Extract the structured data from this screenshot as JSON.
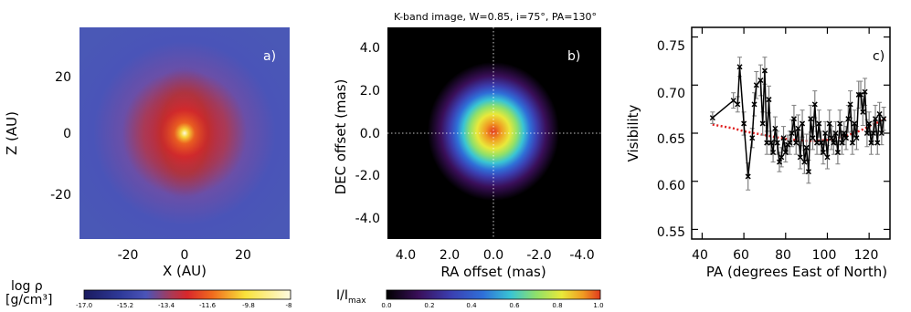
{
  "panel_a": {
    "tag": "a)",
    "x_ticks": [
      "-20",
      "0",
      "20"
    ],
    "y_ticks": [
      "20",
      "0",
      "-20"
    ],
    "xlabel": "X (AU)",
    "ylabel": "Z (AU)",
    "colorbar_label_line1": "log ρ",
    "colorbar_label_line2": "[g/cm³]",
    "colorbar_ticks": [
      "-17.0",
      "-15.2",
      "-13.4",
      "-11.6",
      "-9.8",
      "-8"
    ]
  },
  "panel_b": {
    "tag": "b)",
    "title": "K-band image, W=0.85, i=75°, PA=130°",
    "x_ticks": [
      "4.0",
      "2.0",
      "0.0",
      "-2.0",
      "-4.0"
    ],
    "y_ticks": [
      "4.0",
      "2.0",
      "0.0",
      "-2.0",
      "-4.0"
    ],
    "xlabel": "RA offset (mas)",
    "ylabel": "DEC offset (mas)",
    "colorbar_label": "I/I",
    "colorbar_label_sub": "max",
    "colorbar_ticks": [
      "0.0",
      "0.2",
      "0.4",
      "0.6",
      "0.8",
      "1.0"
    ]
  },
  "panel_c": {
    "tag": "c)",
    "x_ticks": [
      "40",
      "60",
      "80",
      "100",
      "120"
    ],
    "y_ticks": [
      "0.75",
      "0.70",
      "0.65",
      "0.60",
      "0.55"
    ],
    "xlabel": "PA (degrees East of North)",
    "ylabel": "Visibility"
  },
  "colors": {
    "density_map": [
      "#1a1a5e",
      "#2f3a9a",
      "#4a54b8",
      "#6a4fa8",
      "#a83a58",
      "#d9272b",
      "#f06a1e",
      "#f9e23a",
      "#fffbe0"
    ],
    "intensity_map": [
      "#000000",
      "#3a0f5a",
      "#3b3eb0",
      "#2f6fd8",
      "#39c4d4",
      "#8fe06a",
      "#e9e93a",
      "#f09a22",
      "#e23a1e"
    ],
    "model_line": "#e02020",
    "data_line": "#000000",
    "error_bar": "#808080"
  },
  "chart_data": [
    {
      "type": "heatmap",
      "panel": "a",
      "quantity": "log density",
      "xlim": [
        -35,
        35
      ],
      "ylim": [
        -35,
        35
      ],
      "zlim": [
        -17.0,
        -8.0
      ]
    },
    {
      "type": "heatmap",
      "panel": "b",
      "quantity": "normalized K-band intensity",
      "xlim": [
        5.0,
        -5.0
      ],
      "ylim": [
        -5.0,
        5.0
      ],
      "zlim": [
        0.0,
        1.0
      ]
    },
    {
      "type": "line",
      "panel": "c",
      "xlim": [
        35,
        130
      ],
      "ylim": [
        0.54,
        0.76
      ],
      "series": [
        {
          "x": [
            45,
            55,
            57,
            58,
            60,
            62,
            64,
            65,
            66,
            68,
            69,
            70,
            71,
            72,
            73,
            74,
            75,
            76,
            77,
            78,
            79,
            80,
            81,
            82,
            83,
            84,
            85,
            86,
            87,
            88,
            89,
            90,
            91,
            92,
            93,
            94,
            95,
            96,
            97,
            98,
            99,
            100,
            101,
            102,
            103,
            104,
            105,
            106,
            107,
            108,
            109,
            110,
            111,
            112,
            113,
            114,
            115,
            116,
            117,
            118,
            119,
            120,
            121,
            122,
            123,
            124,
            125,
            126,
            127
          ],
          "values": [
            0.666,
            0.684,
            0.68,
            0.719,
            0.66,
            0.605,
            0.645,
            0.68,
            0.7,
            0.705,
            0.66,
            0.715,
            0.64,
            0.685,
            0.64,
            0.63,
            0.655,
            0.64,
            0.62,
            0.625,
            0.645,
            0.63,
            0.638,
            0.64,
            0.65,
            0.665,
            0.64,
            0.655,
            0.625,
            0.66,
            0.62,
            0.635,
            0.61,
            0.665,
            0.645,
            0.68,
            0.64,
            0.66,
            0.64,
            0.63,
            0.65,
            0.625,
            0.66,
            0.645,
            0.64,
            0.65,
            0.63,
            0.66,
            0.64,
            0.65,
            0.645,
            0.665,
            0.68,
            0.64,
            0.66,
            0.645,
            0.69,
            0.69,
            0.672,
            0.693,
            0.65,
            0.66,
            0.64,
            0.65,
            0.665,
            0.64,
            0.67,
            0.65,
            0.665
          ],
          "errors": [
            0.006,
            0.008,
            0.008,
            0.01,
            0.012,
            0.014,
            0.01,
            0.012,
            0.014,
            0.016,
            0.012,
            0.014,
            0.012,
            0.014,
            0.012,
            0.01,
            0.012,
            0.012,
            0.01,
            0.01,
            0.012,
            0.01,
            0.01,
            0.012,
            0.014,
            0.014,
            0.012,
            0.014,
            0.012,
            0.014,
            0.012,
            0.014,
            0.012,
            0.014,
            0.012,
            0.014,
            0.012,
            0.014,
            0.012,
            0.012,
            0.012,
            0.012,
            0.014,
            0.012,
            0.012,
            0.012,
            0.012,
            0.014,
            0.012,
            0.012,
            0.012,
            0.014,
            0.014,
            0.012,
            0.014,
            0.012,
            0.014,
            0.014,
            0.014,
            0.014,
            0.014,
            0.012,
            0.012,
            0.012,
            0.014,
            0.012,
            0.012,
            0.012,
            0.012
          ]
        },
        {
          "x": [
            45,
            50,
            55,
            60,
            65,
            70,
            75,
            80,
            85,
            90,
            95,
            100,
            105,
            110,
            115,
            120,
            125,
            128
          ],
          "values": [
            0.659,
            0.657,
            0.655,
            0.652,
            0.65,
            0.648,
            0.646,
            0.644,
            0.643,
            0.642,
            0.642,
            0.643,
            0.645,
            0.648,
            0.652,
            0.657,
            0.662,
            0.666
          ]
        }
      ]
    }
  ]
}
